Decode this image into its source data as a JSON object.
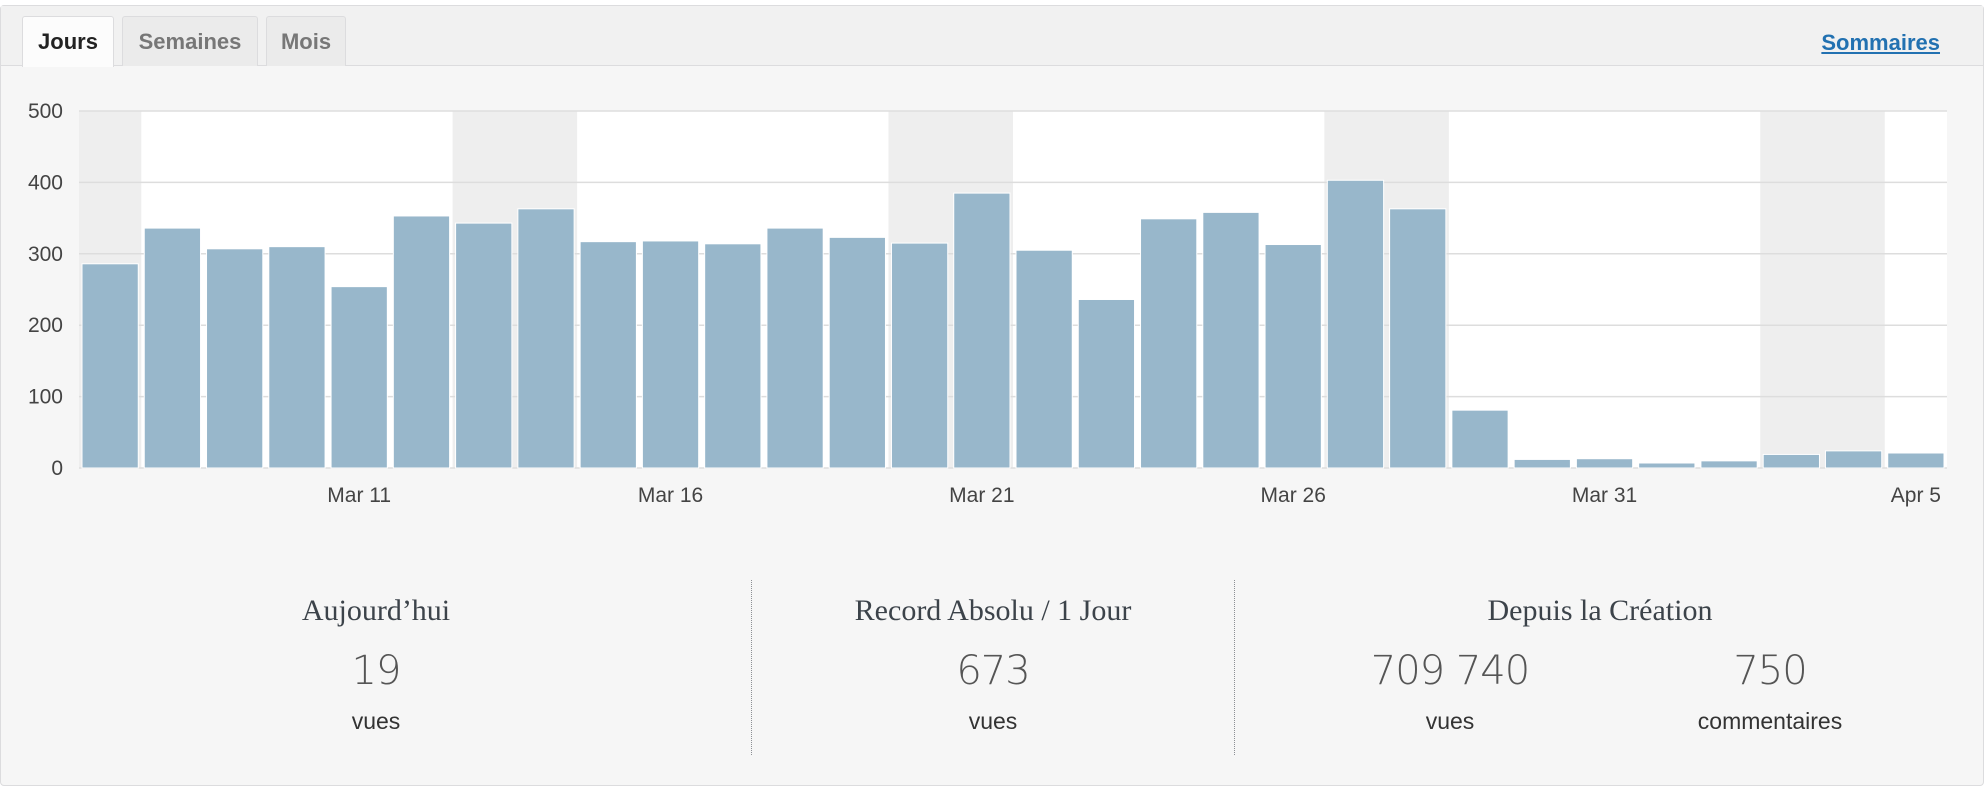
{
  "tabs": [
    {
      "label": "Jours",
      "active": true
    },
    {
      "label": "Semaines",
      "active": false
    },
    {
      "label": "Mois",
      "active": false
    }
  ],
  "summary_link": "Sommaires",
  "colors": {
    "bar": "#98b7cb",
    "weekend": "#eeeeee",
    "grid": "#dddddd",
    "link": "#2271b1"
  },
  "chart_data": {
    "type": "bar",
    "ylim": [
      0,
      500
    ],
    "yticks": [
      0,
      100,
      200,
      300,
      400,
      500
    ],
    "categories": [
      "Mar 7",
      "Mar 8",
      "Mar 9",
      "Mar 10",
      "Mar 11",
      "Mar 12",
      "Mar 13",
      "Mar 14",
      "Mar 15",
      "Mar 16",
      "Mar 17",
      "Mar 18",
      "Mar 19",
      "Mar 20",
      "Mar 21",
      "Mar 22",
      "Mar 23",
      "Mar 24",
      "Mar 25",
      "Mar 26",
      "Mar 27",
      "Mar 28",
      "Mar 29",
      "Mar 30",
      "Mar 31",
      "Apr 1",
      "Apr 2",
      "Apr 3",
      "Apr 4",
      "Apr 5"
    ],
    "values": [
      286,
      336,
      307,
      310,
      254,
      353,
      343,
      363,
      317,
      318,
      314,
      336,
      323,
      315,
      385,
      305,
      236,
      349,
      358,
      313,
      403,
      363,
      81,
      12,
      13,
      7,
      10,
      19,
      24,
      21
    ],
    "xtick_labels": [
      {
        "category": "Mar 11",
        "label": "Mar 11"
      },
      {
        "category": "Mar 16",
        "label": "Mar 16"
      },
      {
        "category": "Mar 21",
        "label": "Mar 21"
      },
      {
        "category": "Mar 26",
        "label": "Mar 26"
      },
      {
        "category": "Mar 31",
        "label": "Mar 31"
      },
      {
        "category": "Apr 5",
        "label": "Apr 5"
      }
    ],
    "weekend_bands": [
      [
        "Mar 7"
      ],
      [
        "Mar 13",
        "Mar 14"
      ],
      [
        "Mar 20",
        "Mar 21"
      ],
      [
        "Mar 27",
        "Mar 28"
      ],
      [
        "Apr 3",
        "Apr 4"
      ]
    ],
    "grid": true,
    "legend": "none"
  },
  "stats": {
    "today": {
      "title": "Aujourd’hui",
      "value": "19",
      "label": "vues"
    },
    "record": {
      "title": "Record Absolu / 1 Jour",
      "value": "673",
      "label": "vues"
    },
    "since": {
      "title": "Depuis la Création",
      "views": {
        "value": "709 740",
        "label": "vues"
      },
      "comments": {
        "value": "750",
        "label": "commentaires"
      }
    }
  }
}
